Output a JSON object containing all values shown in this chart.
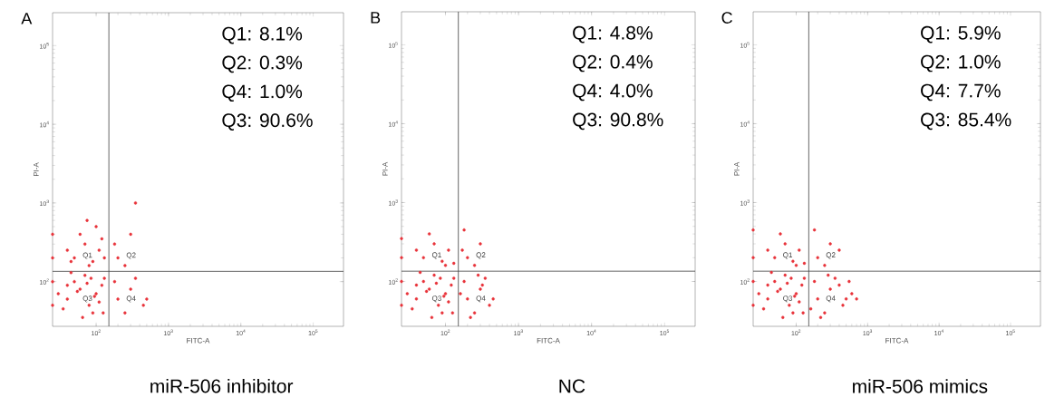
{
  "chart_data": [
    {
      "type": "scatter",
      "title": "A",
      "subtitle": "miR-506 inhibitor",
      "xlabel": "FITC-A",
      "ylabel": "PI-A",
      "log": "xy",
      "color": "#e8333a",
      "xlim": [
        25,
        262144
      ],
      "ylim": [
        27,
        262144
      ],
      "xticks": [
        {
          "value": 100,
          "label": "10$^{2}$"
        },
        {
          "value": 1000,
          "label": "10$^{3}$"
        },
        {
          "value": 10000,
          "label": "10$^{4}$"
        },
        {
          "value": 100000,
          "label": "10$^{5}$"
        }
      ],
      "yticks": [
        {
          "value": 100,
          "label": "10$^{2}$"
        },
        {
          "value": 1000,
          "label": "10$^{3}$"
        },
        {
          "value": 10000,
          "label": "10$^{4}$"
        },
        {
          "value": 100000,
          "label": "10$^{5}$"
        }
      ],
      "ref_lines": [
        {
          "axis": "x",
          "value": 150,
          "color": "#404040"
        },
        {
          "axis": "y",
          "value": 135,
          "color": "#404040"
        }
      ],
      "annotations": [
        "Q1: 8.1%",
        "Q2: 0.3%",
        "Q4: 1.0%",
        "Q3: 90.6%",
        "Q1",
        "Q2",
        "Q3",
        "Q4"
      ],
      "x": [
        40,
        60,
        80,
        100,
        50,
        70,
        90,
        120,
        35,
        45,
        65,
        110,
        130,
        55,
        75,
        95,
        85,
        40,
        30,
        125,
        50,
        70,
        90,
        110,
        60,
        80,
        40,
        130,
        100,
        75,
        45,
        120,
        200,
        300,
        250,
        350,
        180,
        200,
        300,
        250,
        450,
        180,
        350,
        500,
        25,
        25,
        25,
        25
      ],
      "values": [
        60,
        80,
        50,
        70,
        100,
        120,
        40,
        90,
        45,
        130,
        35,
        55,
        110,
        75,
        95,
        65,
        110,
        90,
        70,
        40,
        200,
        300,
        180,
        250,
        400,
        160,
        250,
        200,
        500,
        600,
        180,
        350,
        200,
        400,
        160,
        1000,
        300,
        60,
        80,
        40,
        50,
        100,
        110,
        60,
        50,
        100,
        200,
        400
      ]
    },
    {
      "type": "scatter",
      "title": "B",
      "subtitle": "NC",
      "xlabel": "FITC-A",
      "ylabel": "PI-A",
      "log": "xy",
      "color": "#e8333a",
      "xlim": [
        25,
        262144
      ],
      "ylim": [
        27,
        262144
      ],
      "xticks": [
        {
          "value": 100,
          "label": "10$^{2}$"
        },
        {
          "value": 1000,
          "label": "10$^{3}$"
        },
        {
          "value": 10000,
          "label": "10$^{4}$"
        },
        {
          "value": 100000,
          "label": "10$^{5}$"
        }
      ],
      "yticks": [
        {
          "value": 100,
          "label": "10$^{2}$"
        },
        {
          "value": 1000,
          "label": "10$^{3}$"
        },
        {
          "value": 10000,
          "label": "10$^{4}$"
        },
        {
          "value": 100000,
          "label": "10$^{5}$"
        }
      ],
      "ref_lines": [
        {
          "axis": "x",
          "value": 150,
          "color": "#404040"
        },
        {
          "axis": "y",
          "value": 135,
          "color": "#404040"
        }
      ],
      "annotations": [
        "Q1: 4.8%",
        "Q2: 0.4%",
        "Q4: 4.0%",
        "Q3: 90.8%",
        "Q1",
        "Q2",
        "Q3",
        "Q4"
      ],
      "x": [
        40,
        60,
        80,
        100,
        50,
        70,
        90,
        120,
        35,
        45,
        65,
        110,
        130,
        55,
        75,
        95,
        85,
        40,
        30,
        125,
        50,
        70,
        90,
        110,
        60,
        40,
        130,
        100,
        200,
        300,
        250,
        180,
        170,
        200,
        300,
        250,
        400,
        180,
        350,
        450,
        220,
        280,
        320,
        160,
        25,
        25,
        25,
        25
      ],
      "values": [
        60,
        80,
        50,
        70,
        100,
        120,
        40,
        90,
        45,
        130,
        35,
        55,
        110,
        75,
        95,
        65,
        110,
        90,
        70,
        40,
        200,
        300,
        180,
        250,
        400,
        250,
        170,
        160,
        200,
        300,
        160,
        450,
        250,
        60,
        80,
        40,
        50,
        100,
        110,
        60,
        35,
        120,
        90,
        70,
        50,
        100,
        200,
        350
      ]
    },
    {
      "type": "scatter",
      "title": "C",
      "subtitle": "miR-506 mimics",
      "xlabel": "FITC-A",
      "ylabel": "PI-A",
      "log": "xy",
      "color": "#e8333a",
      "xlim": [
        25,
        262144
      ],
      "ylim": [
        27,
        262144
      ],
      "xticks": [
        {
          "value": 100,
          "label": "10$^{2}$"
        },
        {
          "value": 1000,
          "label": "10$^{3}$"
        },
        {
          "value": 10000,
          "label": "10$^{4}$"
        },
        {
          "value": 100000,
          "label": "10$^{5}$"
        }
      ],
      "yticks": [
        {
          "value": 100,
          "label": "10$^{2}$"
        },
        {
          "value": 1000,
          "label": "10$^{3}$"
        },
        {
          "value": 10000,
          "label": "10$^{4}$"
        },
        {
          "value": 100000,
          "label": "10$^{5}$"
        }
      ],
      "ref_lines": [
        {
          "axis": "x",
          "value": 150,
          "color": "#404040"
        },
        {
          "axis": "y",
          "value": 135,
          "color": "#404040"
        }
      ],
      "annotations": [
        "Q1: 5.9%",
        "Q2: 1.0%",
        "Q4: 7.7%",
        "Q3: 85.4%",
        "Q1",
        "Q2",
        "Q3",
        "Q4"
      ],
      "x": [
        40,
        60,
        80,
        100,
        50,
        70,
        90,
        120,
        35,
        45,
        65,
        110,
        130,
        55,
        75,
        95,
        85,
        40,
        30,
        125,
        50,
        70,
        90,
        110,
        60,
        40,
        130,
        100,
        200,
        300,
        250,
        400,
        180,
        200,
        300,
        250,
        450,
        180,
        350,
        500,
        220,
        280,
        400,
        600,
        700,
        160,
        550,
        25,
        25,
        25,
        25
      ],
      "values": [
        60,
        80,
        50,
        70,
        100,
        120,
        40,
        90,
        45,
        130,
        35,
        55,
        110,
        75,
        95,
        65,
        110,
        90,
        70,
        40,
        200,
        300,
        180,
        250,
        400,
        250,
        170,
        160,
        200,
        300,
        160,
        250,
        450,
        60,
        80,
        40,
        50,
        100,
        110,
        60,
        35,
        120,
        90,
        70,
        60,
        45,
        100,
        50,
        100,
        200,
        450
      ]
    }
  ]
}
